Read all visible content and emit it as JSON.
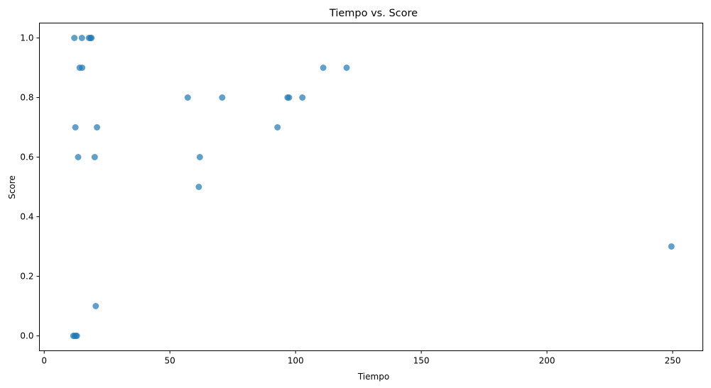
{
  "chart_data": {
    "type": "scatter",
    "title": "Tiempo vs. Score",
    "xlabel": "Tiempo",
    "ylabel": "Score",
    "xlim": [
      -1.9,
      262
    ],
    "ylim": [
      -0.05,
      1.05
    ],
    "xticks": [
      0,
      50,
      100,
      150,
      200,
      250
    ],
    "yticks": [
      0.0,
      0.2,
      0.4,
      0.6,
      0.8,
      1.0
    ],
    "xtick_labels": [
      "0",
      "50",
      "100",
      "150",
      "200",
      "250"
    ],
    "ytick_labels": [
      "0.0",
      "0.2",
      "0.4",
      "0.6",
      "0.8",
      "1.0"
    ],
    "grid": false,
    "marker_color": "#1f77b4",
    "points": [
      {
        "x": 11.6,
        "y": 0.0
      },
      {
        "x": 12.1,
        "y": 0.0
      },
      {
        "x": 12.6,
        "y": 0.0
      },
      {
        "x": 13.0,
        "y": 0.0
      },
      {
        "x": 12.0,
        "y": 1.0
      },
      {
        "x": 15.0,
        "y": 1.0
      },
      {
        "x": 17.8,
        "y": 1.0
      },
      {
        "x": 18.4,
        "y": 1.0
      },
      {
        "x": 18.8,
        "y": 1.0
      },
      {
        "x": 14.1,
        "y": 0.9
      },
      {
        "x": 15.1,
        "y": 0.9
      },
      {
        "x": 12.4,
        "y": 0.7
      },
      {
        "x": 21.0,
        "y": 0.7
      },
      {
        "x": 13.5,
        "y": 0.6
      },
      {
        "x": 20.1,
        "y": 0.6
      },
      {
        "x": 20.5,
        "y": 0.1
      },
      {
        "x": 57.1,
        "y": 0.8
      },
      {
        "x": 70.8,
        "y": 0.8
      },
      {
        "x": 96.8,
        "y": 0.8
      },
      {
        "x": 97.4,
        "y": 0.8
      },
      {
        "x": 102.7,
        "y": 0.8
      },
      {
        "x": 61.9,
        "y": 0.6
      },
      {
        "x": 61.5,
        "y": 0.5
      },
      {
        "x": 92.8,
        "y": 0.7
      },
      {
        "x": 111.0,
        "y": 0.9
      },
      {
        "x": 120.3,
        "y": 0.9
      },
      {
        "x": 249.5,
        "y": 0.3
      }
    ]
  }
}
